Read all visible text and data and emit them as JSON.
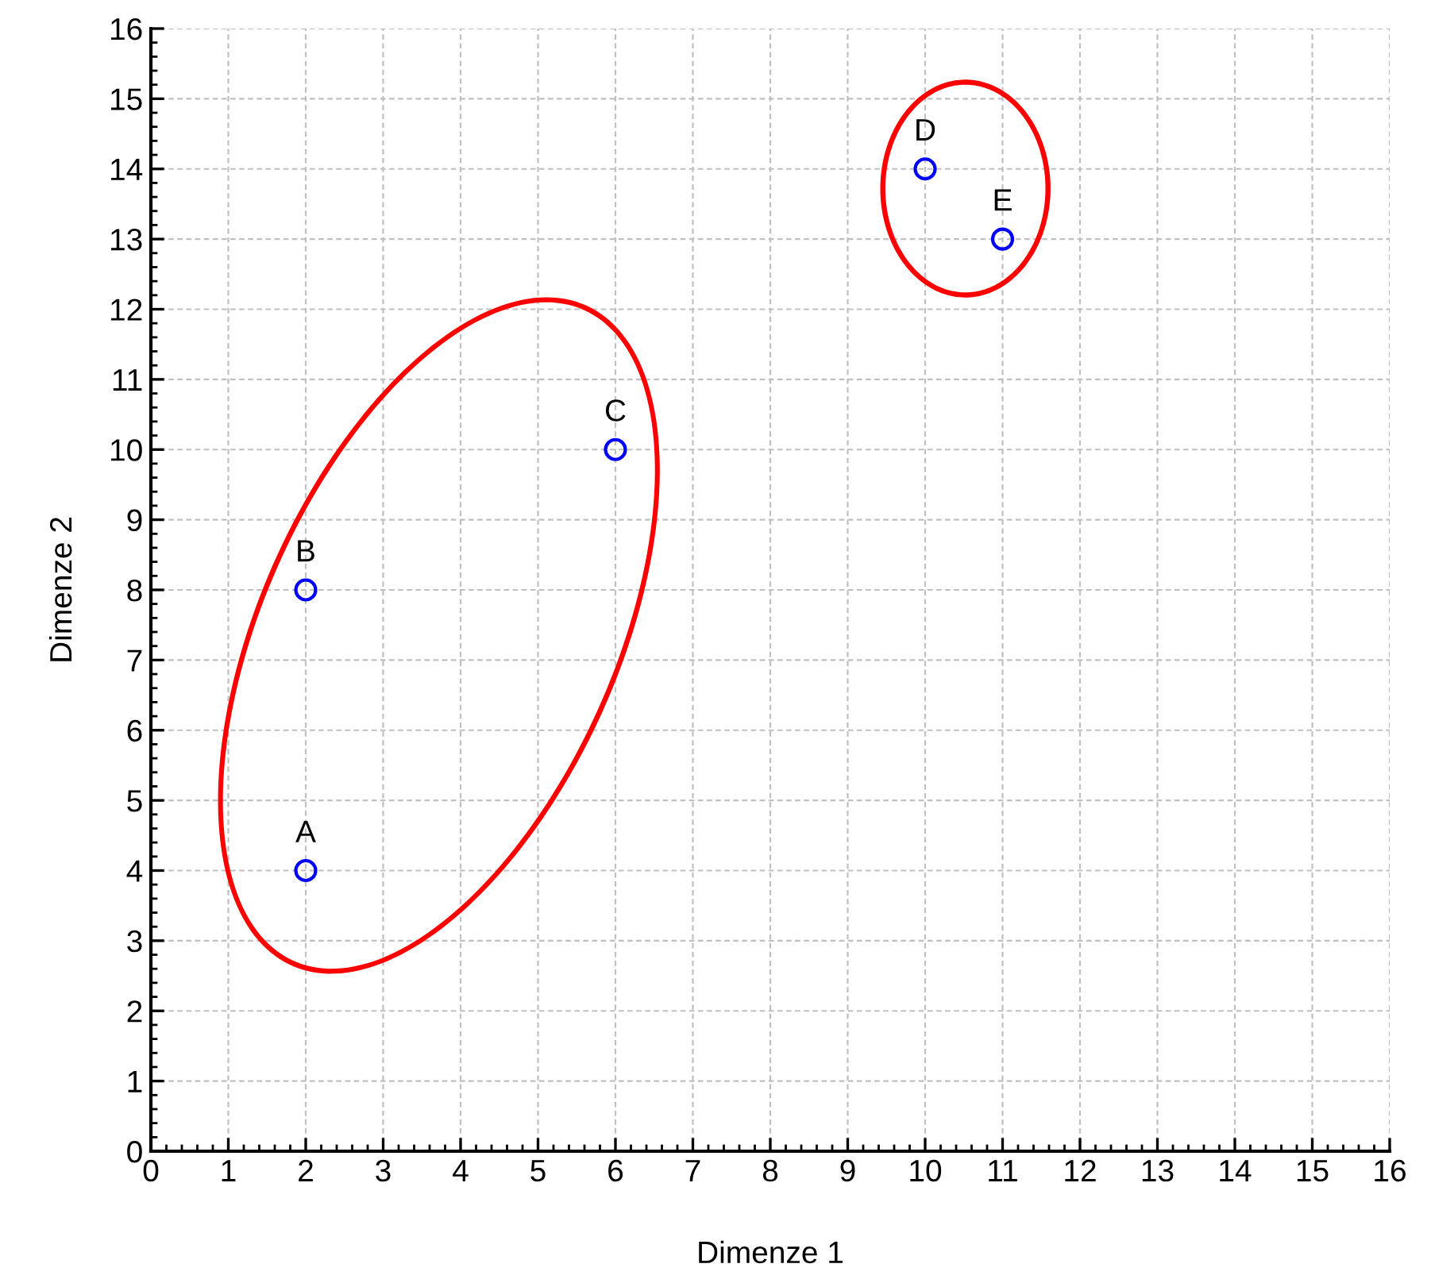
{
  "chart_data": {
    "type": "scatter",
    "xlabel": "Dimenze 1",
    "ylabel": "Dimenze 2",
    "x": [
      2,
      2,
      6,
      10,
      11
    ],
    "series": [
      {
        "color": "#0000ff",
        "values": [
          4,
          8,
          10,
          14,
          13
        ]
      }
    ],
    "marker": "circle",
    "grid": true,
    "xlim": [
      0,
      16
    ],
    "ylim": [
      0,
      16
    ],
    "xticks": [
      0,
      1,
      2,
      3,
      4,
      5,
      6,
      7,
      8,
      9,
      10,
      11,
      12,
      13,
      14,
      15,
      16
    ],
    "yticks": [
      0,
      1,
      2,
      3,
      4,
      5,
      6,
      7,
      8,
      9,
      10,
      11,
      12,
      13,
      14,
      15,
      16
    ],
    "annotations": [
      {
        "text": "A",
        "x": 2,
        "y": 4
      },
      {
        "text": "B",
        "x": 2,
        "y": 8
      },
      {
        "text": "C",
        "x": 6,
        "y": 10
      },
      {
        "text": "D",
        "x": 10,
        "y": 14
      },
      {
        "text": "E",
        "x": 11,
        "y": 13
      }
    ]
  }
}
